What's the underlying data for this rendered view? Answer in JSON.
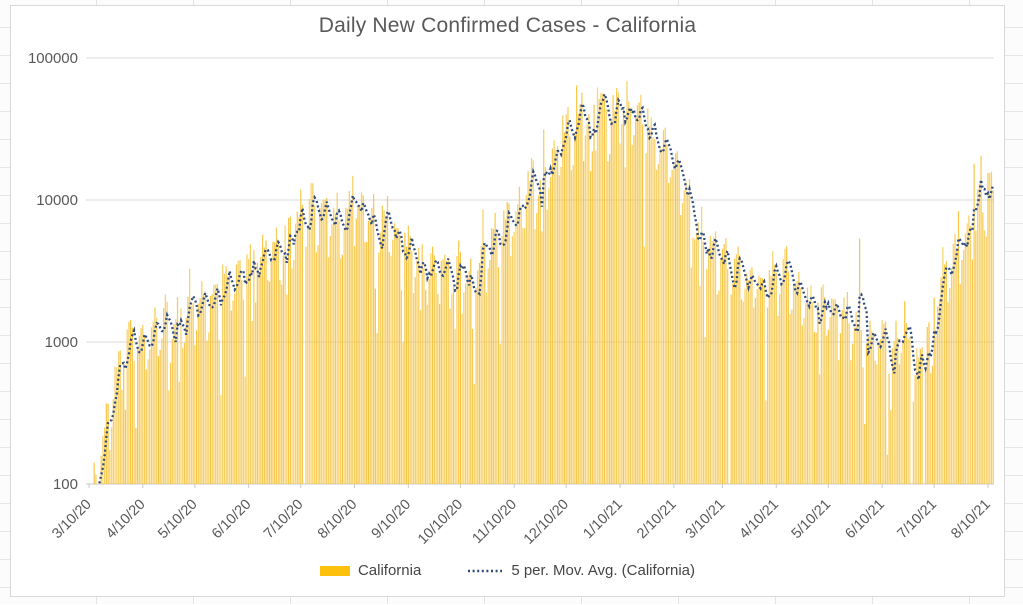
{
  "chart": {
    "title": "Daily New Confirmed Cases - California",
    "legend": [
      {
        "label": "California",
        "type": "bar"
      },
      {
        "label": "5 per. Mov. Avg. (California)",
        "type": "dotted-line"
      }
    ]
  },
  "colors": {
    "bar": "#F7C541",
    "legend_bar_swatch": "#FDC00D",
    "moving_average_line": "#2E4A7D",
    "gridline": "#D9D9D9",
    "axis_line": "#C9C9C9",
    "tick_label": "#595959",
    "title_text": "#595959",
    "legend_text": "#454545"
  },
  "chart_data": {
    "type": "bar",
    "title": "Daily New Confirmed Cases - California",
    "y_scale": "log",
    "ylim": [
      100,
      100000
    ],
    "y_tick_labels": [
      "100",
      "1000",
      "10000",
      "100000"
    ],
    "grid": "horizontal-only",
    "legend_position": "bottom-center",
    "series": [
      {
        "name": "California",
        "type": "bar"
      },
      {
        "name": "5 per. Mov. Avg. (California)",
        "type": "dotted-line",
        "window": 5
      }
    ],
    "x_ticks": [
      {
        "label": "3/10/20",
        "date": "2020-03-10"
      },
      {
        "label": "4/10/20",
        "date": "2020-04-10"
      },
      {
        "label": "5/10/20",
        "date": "2020-05-10"
      },
      {
        "label": "6/10/20",
        "date": "2020-06-10"
      },
      {
        "label": "7/10/20",
        "date": "2020-07-10"
      },
      {
        "label": "8/10/20",
        "date": "2020-08-10"
      },
      {
        "label": "9/10/20",
        "date": "2020-09-10"
      },
      {
        "label": "10/10/20",
        "date": "2020-10-10"
      },
      {
        "label": "11/10/20",
        "date": "2020-11-10"
      },
      {
        "label": "12/10/20",
        "date": "2020-12-10"
      },
      {
        "label": "1/10/21",
        "date": "2021-01-10"
      },
      {
        "label": "2/10/21",
        "date": "2021-02-10"
      },
      {
        "label": "3/10/21",
        "date": "2021-03-10"
      },
      {
        "label": "4/10/21",
        "date": "2021-04-10"
      },
      {
        "label": "5/10/21",
        "date": "2021-05-10"
      },
      {
        "label": "6/10/21",
        "date": "2021-06-10"
      },
      {
        "label": "7/10/21",
        "date": "2021-07-10"
      },
      {
        "label": "8/10/21",
        "date": "2021-08-10"
      }
    ],
    "start_date": "2020-03-12",
    "end_date": "2021-08-13",
    "trend_anchors": [
      [
        "2020-03-12",
        85
      ],
      [
        "2020-03-16",
        140
      ],
      [
        "2020-03-20",
        280
      ],
      [
        "2020-03-24",
        460
      ],
      [
        "2020-03-28",
        900
      ],
      [
        "2020-03-31",
        1300
      ],
      [
        "2020-04-05",
        1150
      ],
      [
        "2020-04-13",
        1150
      ],
      [
        "2020-04-17",
        1350
      ],
      [
        "2020-04-20",
        1200
      ],
      [
        "2020-04-23",
        1480
      ],
      [
        "2020-04-26",
        1370
      ],
      [
        "2020-05-02",
        1580
      ],
      [
        "2020-05-06",
        1730
      ],
      [
        "2020-05-09",
        1580
      ],
      [
        "2020-05-12",
        1870
      ],
      [
        "2020-05-18",
        1960
      ],
      [
        "2020-05-25",
        2290
      ],
      [
        "2020-06-01",
        2700
      ],
      [
        "2020-06-08",
        3100
      ],
      [
        "2020-06-15",
        3600
      ],
      [
        "2020-06-23",
        4500
      ],
      [
        "2020-06-29",
        4300
      ],
      [
        "2020-07-07",
        7200
      ],
      [
        "2020-07-14",
        8800
      ],
      [
        "2020-07-21",
        9400
      ],
      [
        "2020-07-26",
        8700
      ],
      [
        "2020-08-02",
        7100
      ],
      [
        "2020-08-08",
        8500
      ],
      [
        "2020-08-12",
        9600
      ],
      [
        "2020-08-16",
        8200
      ],
      [
        "2020-08-20",
        7600
      ],
      [
        "2020-08-25",
        6900
      ],
      [
        "2020-08-31",
        5900
      ],
      [
        "2020-09-06",
        4900
      ],
      [
        "2020-09-12",
        4430
      ],
      [
        "2020-09-17",
        3800
      ],
      [
        "2020-09-22",
        3350
      ],
      [
        "2020-09-29",
        3460
      ],
      [
        "2020-10-01",
        3100
      ],
      [
        "2020-10-09",
        3460
      ],
      [
        "2020-10-17",
        3100
      ],
      [
        "2020-10-22",
        3760
      ],
      [
        "2020-10-27",
        4550
      ],
      [
        "2020-11-02",
        5900
      ],
      [
        "2020-11-07",
        7000
      ],
      [
        "2020-11-13",
        8900
      ],
      [
        "2020-11-17",
        13000
      ],
      [
        "2020-11-21",
        13200
      ],
      [
        "2020-11-25",
        12700
      ],
      [
        "2020-12-01",
        16700
      ],
      [
        "2020-12-06",
        22400
      ],
      [
        "2020-12-12",
        31000
      ],
      [
        "2020-12-18",
        37700
      ],
      [
        "2020-12-25",
        46500
      ],
      [
        "2021-01-01",
        39800
      ],
      [
        "2021-01-06",
        41100
      ],
      [
        "2021-01-12",
        45300
      ],
      [
        "2021-01-18",
        42000
      ],
      [
        "2021-01-22",
        35500
      ],
      [
        "2021-01-28",
        26500
      ],
      [
        "2021-02-05",
        22400
      ],
      [
        "2021-02-12",
        15700
      ],
      [
        "2021-02-16",
        13000
      ],
      [
        "2021-02-21",
        9000
      ],
      [
        "2021-02-25",
        6300
      ],
      [
        "2021-03-01",
        5100
      ],
      [
        "2021-03-05",
        4760
      ],
      [
        "2021-03-11",
        3570
      ],
      [
        "2021-03-16",
        2850
      ],
      [
        "2021-03-22",
        3180
      ],
      [
        "2021-03-25",
        2420
      ],
      [
        "2021-03-28",
        3030
      ],
      [
        "2021-04-01",
        2570
      ],
      [
        "2021-04-05",
        2710
      ],
      [
        "2021-04-12",
        3440
      ],
      [
        "2021-04-16",
        3080
      ],
      [
        "2021-04-20",
        2620
      ],
      [
        "2021-04-24",
        2230
      ],
      [
        "2021-04-27",
        1810
      ],
      [
        "2021-04-30",
        1750
      ],
      [
        "2021-05-03",
        2060
      ],
      [
        "2021-05-08",
        1900
      ],
      [
        "2021-05-12",
        1750
      ],
      [
        "2021-05-16",
        1580
      ],
      [
        "2021-05-19",
        1610
      ],
      [
        "2021-05-22",
        1370
      ],
      [
        "2021-05-26",
        1240
      ],
      [
        "2021-06-02",
        1100
      ],
      [
        "2021-06-05",
        1000
      ],
      [
        "2021-06-08",
        910
      ],
      [
        "2021-06-11",
        1140
      ],
      [
        "2021-06-14",
        1000
      ],
      [
        "2021-06-17",
        945
      ],
      [
        "2021-06-20",
        1140
      ],
      [
        "2021-06-23",
        1080
      ],
      [
        "2021-06-28",
        700
      ],
      [
        "2021-07-01",
        680
      ],
      [
        "2021-07-03",
        1000
      ],
      [
        "2021-07-06",
        1300
      ],
      [
        "2021-07-09",
        1900
      ],
      [
        "2021-07-12",
        2570
      ],
      [
        "2021-07-15",
        3180
      ],
      [
        "2021-07-18",
        3700
      ],
      [
        "2021-07-20",
        4430
      ],
      [
        "2021-07-23",
        4100
      ],
      [
        "2021-07-27",
        5450
      ],
      [
        "2021-07-30",
        6080
      ],
      [
        "2021-08-01",
        6940
      ],
      [
        "2021-08-03",
        8180
      ],
      [
        "2021-08-05",
        9800
      ],
      [
        "2021-08-07",
        8400
      ],
      [
        "2021-08-09",
        10700
      ],
      [
        "2021-08-11",
        11700
      ],
      [
        "2021-08-13",
        10500
      ]
    ],
    "outliers": {
      "2020-07-12": 90,
      "2020-08-09": 14800,
      "2020-11-21": 19000,
      "2020-11-26": 6000,
      "2020-12-16": 64000,
      "2020-12-19": 57000,
      "2020-12-25": 22000,
      "2020-12-28": 62000,
      "2021-01-26": 44000,
      "2021-03-14": 95,
      "2021-05-28": 5350,
      "2021-06-27": 70,
      "2021-07-04": 60,
      "2021-08-02": 18000,
      "2021-08-06": 20500,
      "2021-08-10": 15500
    },
    "noise": {
      "seed": 1337,
      "dow_log_offsets": [
        -0.26,
        -0.2,
        -0.05,
        0.05,
        0.08,
        0.11,
        0.04
      ],
      "jitter_log": 0.09,
      "dip_prob": 0.05,
      "dip_log": -0.5,
      "spike_prob": 0.03,
      "spike_log": 0.17
    }
  }
}
